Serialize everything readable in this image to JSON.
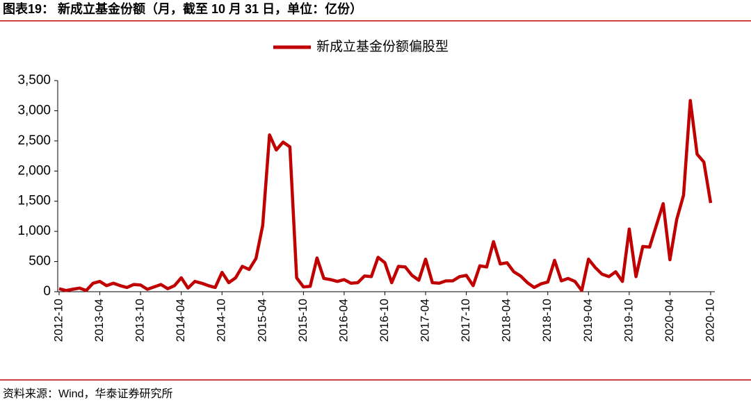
{
  "chart_data": {
    "type": "line",
    "title": "图表19：  新成立基金份额（月，截至 10 月 31 日，单位：亿份）",
    "source": "资料来源：Wind，华泰证券研究所",
    "categories": [
      "2012-10",
      null,
      null,
      null,
      null,
      null,
      "2013-04",
      null,
      null,
      null,
      null,
      null,
      "2013-10",
      null,
      null,
      null,
      null,
      null,
      "2014-04",
      null,
      null,
      null,
      null,
      null,
      "2014-10",
      null,
      null,
      null,
      null,
      null,
      "2015-04",
      null,
      null,
      null,
      null,
      null,
      "2015-10",
      null,
      null,
      null,
      null,
      null,
      "2016-04",
      null,
      null,
      null,
      null,
      null,
      "2016-10",
      null,
      null,
      null,
      null,
      null,
      "2017-04",
      null,
      null,
      null,
      null,
      null,
      "2017-10",
      null,
      null,
      null,
      null,
      null,
      "2018-04",
      null,
      null,
      null,
      null,
      null,
      "2018-10",
      null,
      null,
      null,
      null,
      null,
      "2019-04",
      null,
      null,
      null,
      null,
      null,
      "2019-10",
      null,
      null,
      null,
      null,
      null,
      "2020-04",
      null,
      null,
      null,
      null,
      null,
      "2020-10"
    ],
    "series": [
      {
        "name": "新成立基金份额偏股型",
        "color": "#c00000",
        "values": [
          50,
          20,
          40,
          60,
          20,
          140,
          170,
          100,
          140,
          100,
          70,
          120,
          110,
          40,
          80,
          120,
          50,
          100,
          230,
          60,
          170,
          140,
          100,
          70,
          320,
          150,
          230,
          420,
          370,
          550,
          1100,
          2600,
          2350,
          2480,
          2400,
          230,
          80,
          90,
          560,
          220,
          200,
          170,
          200,
          140,
          150,
          260,
          250,
          570,
          480,
          150,
          420,
          410,
          270,
          190,
          540,
          150,
          140,
          180,
          180,
          250,
          270,
          100,
          430,
          410,
          830,
          460,
          480,
          330,
          260,
          150,
          70,
          130,
          160,
          520,
          180,
          220,
          170,
          20,
          540,
          400,
          290,
          250,
          330,
          170,
          1040,
          250,
          750,
          740,
          1100,
          1460,
          530,
          1200,
          1600,
          3170,
          2280,
          2150,
          1470
        ]
      }
    ],
    "ylim": [
      0,
      3500
    ],
    "yticks": [
      0,
      500,
      {
        "value": 1000,
        "label": "1,000"
      },
      {
        "value": 1500,
        "label": "1,500"
      },
      {
        "value": 2000,
        "label": "2,000"
      },
      {
        "value": 2500,
        "label": "2,500"
      },
      {
        "value": 3000,
        "label": "3,000"
      },
      {
        "value": 3500,
        "label": "3,500"
      }
    ],
    "legend": "top"
  }
}
